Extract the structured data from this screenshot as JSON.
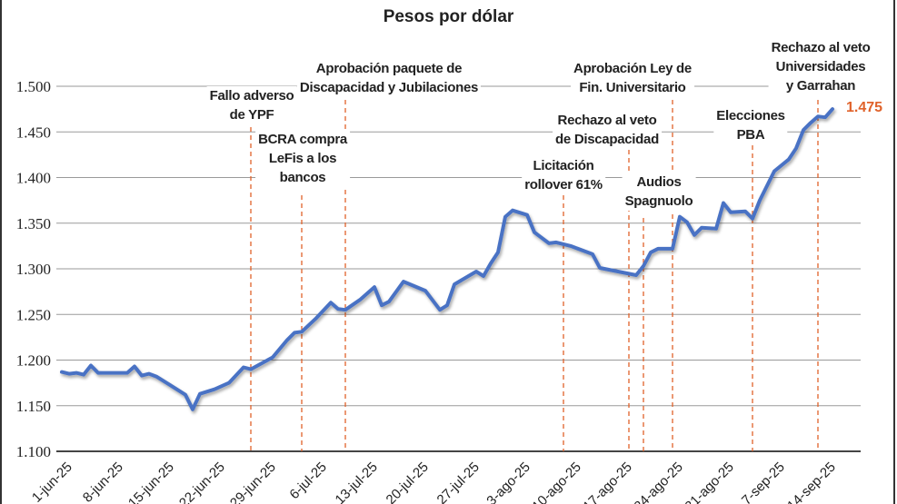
{
  "chart_data": {
    "type": "line",
    "title": "Pesos por dólar",
    "xlabel": "",
    "ylabel": "",
    "ylim": [
      1.1,
      1.5
    ],
    "y_ticks": [
      "1.100",
      "1.150",
      "1.200",
      "1.250",
      "1.300",
      "1.350",
      "1.400",
      "1.450",
      "1.500"
    ],
    "x_ticks": [
      "1-jun-25",
      "8-jun-25",
      "15-jun-25",
      "22-jun-25",
      "29-jun-25",
      "6-jul-25",
      "13-jul-25",
      "20-jul-25",
      "27-jul-25",
      "3-ago-25",
      "10-ago-25",
      "17-ago-25",
      "24-ago-25",
      "31-ago-25",
      "7-sep-25",
      "14-sep-25"
    ],
    "grid": "horizontal",
    "line_color": "#4a72c4",
    "event_color": "#e0622a",
    "last_value_label": "1.475",
    "series": [
      {
        "points": [
          [
            "2025-06-01",
            1.187
          ],
          [
            "2025-06-02",
            1.185
          ],
          [
            "2025-06-03",
            1.186
          ],
          [
            "2025-06-04",
            1.184
          ],
          [
            "2025-06-05",
            1.194
          ],
          [
            "2025-06-06",
            1.186
          ],
          [
            "2025-06-10",
            1.186
          ],
          [
            "2025-06-11",
            1.193
          ],
          [
            "2025-06-12",
            1.183
          ],
          [
            "2025-06-13",
            1.185
          ],
          [
            "2025-06-14",
            1.182
          ],
          [
            "2025-06-16",
            1.172
          ],
          [
            "2025-06-18",
            1.162
          ],
          [
            "2025-06-19",
            1.146
          ],
          [
            "2025-06-20",
            1.163
          ],
          [
            "2025-06-22",
            1.168
          ],
          [
            "2025-06-24",
            1.175
          ],
          [
            "2025-06-26",
            1.192
          ],
          [
            "2025-06-27",
            1.19
          ],
          [
            "2025-06-30",
            1.203
          ],
          [
            "2025-07-02",
            1.222
          ],
          [
            "2025-07-03",
            1.23
          ],
          [
            "2025-07-04",
            1.231
          ],
          [
            "2025-07-06",
            1.246
          ],
          [
            "2025-07-08",
            1.263
          ],
          [
            "2025-07-09",
            1.256
          ],
          [
            "2025-07-10",
            1.255
          ],
          [
            "2025-07-12",
            1.266
          ],
          [
            "2025-07-14",
            1.28
          ],
          [
            "2025-07-15",
            1.26
          ],
          [
            "2025-07-16",
            1.264
          ],
          [
            "2025-07-18",
            1.286
          ],
          [
            "2025-07-21",
            1.276
          ],
          [
            "2025-07-23",
            1.255
          ],
          [
            "2025-07-24",
            1.26
          ],
          [
            "2025-07-25",
            1.283
          ],
          [
            "2025-07-28",
            1.297
          ],
          [
            "2025-07-29",
            1.292
          ],
          [
            "2025-07-30",
            1.306
          ],
          [
            "2025-07-31",
            1.318
          ],
          [
            "2025-08-01",
            1.357
          ],
          [
            "2025-08-02",
            1.364
          ],
          [
            "2025-08-04",
            1.359
          ],
          [
            "2025-08-05",
            1.34
          ],
          [
            "2025-08-07",
            1.328
          ],
          [
            "2025-08-08",
            1.329
          ],
          [
            "2025-08-10",
            1.325
          ],
          [
            "2025-08-13",
            1.316
          ],
          [
            "2025-08-14",
            1.301
          ],
          [
            "2025-08-19",
            1.293
          ],
          [
            "2025-08-20",
            1.303
          ],
          [
            "2025-08-21",
            1.318
          ],
          [
            "2025-08-22",
            1.322
          ],
          [
            "2025-08-24",
            1.322
          ],
          [
            "2025-08-25",
            1.357
          ],
          [
            "2025-08-26",
            1.351
          ],
          [
            "2025-08-27",
            1.337
          ],
          [
            "2025-08-28",
            1.345
          ],
          [
            "2025-08-30",
            1.344
          ],
          [
            "2025-08-31",
            1.372
          ],
          [
            "2025-09-01",
            1.362
          ],
          [
            "2025-09-03",
            1.363
          ],
          [
            "2025-09-04",
            1.355
          ],
          [
            "2025-09-05",
            1.375
          ],
          [
            "2025-09-07",
            1.407
          ],
          [
            "2025-09-09",
            1.42
          ],
          [
            "2025-09-10",
            1.432
          ],
          [
            "2025-09-11",
            1.452
          ],
          [
            "2025-09-12",
            1.46
          ],
          [
            "2025-09-13",
            1.467
          ],
          [
            "2025-09-14",
            1.466
          ],
          [
            "2025-09-15",
            1.475
          ]
        ]
      }
    ],
    "annotations": [
      {
        "date": "2025-06-27",
        "lines": [
          "Fallo adverso",
          "de YPF"
        ]
      },
      {
        "date": "2025-07-04",
        "lines": [
          "BCRA compra",
          "LeFis a los",
          "bancos"
        ]
      },
      {
        "date": "2025-07-10",
        "lines": [
          "Aprobación paquete de",
          "Discapacidad y Jubilaciones"
        ]
      },
      {
        "date": "2025-08-09",
        "lines": [
          "Licitación",
          "rollover 61%"
        ]
      },
      {
        "date": "2025-08-18",
        "lines": [
          "Rechazo al veto",
          "de Discapacidad"
        ]
      },
      {
        "date": "2025-08-20",
        "lines": [
          "Audios",
          "Spagnuolo"
        ]
      },
      {
        "date": "2025-08-24",
        "lines": [
          "Aprobación Ley de",
          "Fin. Universitario"
        ]
      },
      {
        "date": "2025-09-04",
        "lines": [
          "Elecciones",
          "PBA"
        ]
      },
      {
        "date": "2025-09-13",
        "lines": [
          "Rechazo al veto",
          "Universidades",
          "y Garrahan"
        ]
      }
    ]
  }
}
